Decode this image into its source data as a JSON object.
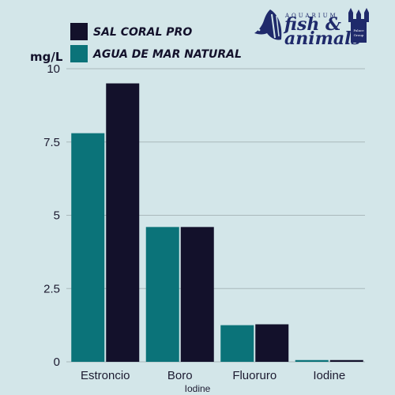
{
  "logo": {
    "line1": "AQUARIUM",
    "line2": "fish &",
    "line3": "animals",
    "badge_line1": "Palace",
    "badge_line2": "Group"
  },
  "colors": {
    "background": "#d3e6e9",
    "series_1": "#13112b",
    "series_2": "#0b7379",
    "gridline": "#aab8bb",
    "text": "#1c1a30",
    "logo": "#1f2a6b"
  },
  "chart_data": {
    "type": "bar",
    "title": "",
    "ylabel": "mg/L",
    "xlabel": "Iodine",
    "categories": [
      "Estroncio",
      "Boro",
      "Fluoruro",
      "Iodine"
    ],
    "series": [
      {
        "name": "AGUA DE MAR NATURAL",
        "values": [
          7.8,
          4.6,
          1.25,
          0.06
        ],
        "color": "#0b7379"
      },
      {
        "name": "SAL CORAL PRO",
        "values": [
          9.5,
          4.6,
          1.28,
          0.06
        ],
        "color": "#13112b"
      }
    ],
    "legend_order": [
      "SAL CORAL PRO",
      "AGUA DE MAR NATURAL"
    ],
    "legend_position": "top-left",
    "yticks": [
      "0",
      "2.5",
      "5",
      "7.5",
      "10"
    ],
    "ylim": [
      0,
      10
    ],
    "grid": true
  }
}
